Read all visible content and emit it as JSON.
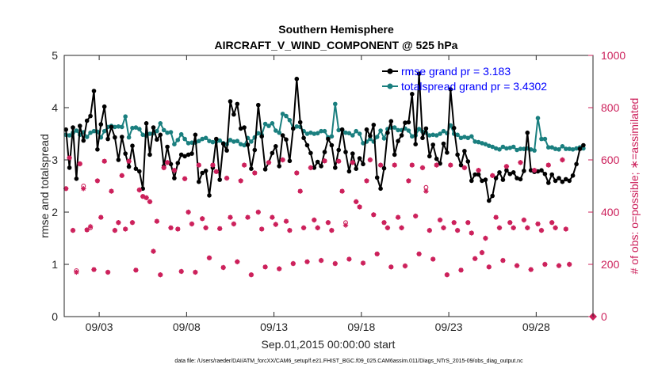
{
  "chart_data": {
    "type": "line",
    "title": "Southern Hemisphere",
    "subtitle": "AIRCRAFT_V_WIND_COMPONENT @ 525 hPa",
    "xlabel": "Sep.01,2015 00:00:00 start",
    "ylabel": "rmse and totalspread",
    "ylabel_right": "# of obs: o=possible; ∗=assimilated",
    "x_tick_labels": [
      "09/03",
      "09/08",
      "09/13",
      "09/18",
      "09/23",
      "09/28"
    ],
    "x_tick_days": [
      3,
      8,
      13,
      18,
      23,
      28
    ],
    "xlim_days": [
      1.0,
      31.25
    ],
    "ylim": [
      0,
      5
    ],
    "y_ticks": [
      0,
      1,
      2,
      3,
      4,
      5
    ],
    "ylim_right": [
      0,
      1000
    ],
    "y_ticks_right": [
      0,
      200,
      400,
      600,
      800,
      1000
    ],
    "footnote": "data file: /Users/raeder/DAI/ATM_forcXX/CAM6_setup/f.e21.FHIST_BGC.f09_025.CAM6assim.011/Diags_NTrS_2015-09/obs_diag_output.nc",
    "colors": {
      "rmse": "#000000",
      "spread": "#1a7f7f",
      "obs": "#cc1f5a",
      "legend_text": "#0000ff"
    },
    "series": [
      {
        "name": "rmse grand pr = 3.183",
        "values": [
          3.58,
          2.85,
          3.62,
          2.64,
          3.65,
          3.37,
          3.75,
          3.84,
          4.32,
          3.2,
          3.68,
          4.02,
          3.4,
          3.63,
          3.43,
          3.0,
          3.44,
          3.12,
          2.87,
          3.27,
          2.83,
          2.78,
          2.45,
          3.7,
          3.1,
          3.62,
          3.39,
          3.48,
          2.88,
          3.25,
          2.92,
          2.65,
          2.94,
          3.1,
          3.07,
          3.1,
          3.12,
          3.48,
          2.58,
          2.75,
          2.79,
          2.32,
          2.85,
          3.4,
          2.62,
          3.31,
          3.18,
          4.12,
          3.87,
          4.07,
          3.6,
          3.62,
          3.29,
          2.83,
          3.19,
          4.05,
          3.45,
          2.82,
          2.95,
          3.13,
          3.26,
          2.88,
          3.47,
          3.39,
          2.98,
          3.6,
          4.55,
          3.72,
          3.42,
          3.28,
          3.13,
          2.85,
          2.96,
          2.88,
          3.15,
          3.4,
          3.28,
          2.85,
          3.19,
          3.58,
          3.15,
          2.78,
          3.12,
          2.83,
          3.03,
          2.92,
          3.58,
          3.46,
          3.67,
          2.66,
          2.45,
          2.84,
          3.52,
          3.74,
          3.1,
          3.36,
          3.47,
          3.71,
          3.72,
          4.26,
          3.3,
          4.65,
          3.42,
          3.6,
          3.07,
          3.29,
          3.02,
          2.93,
          3.31,
          3.14,
          4.35,
          3.61,
          3.1,
          2.9,
          3.17,
          2.97,
          2.6,
          2.72,
          2.72,
          2.6,
          2.62,
          2.22,
          2.31,
          2.65,
          2.76,
          2.62,
          2.8,
          2.73,
          2.76,
          2.65,
          2.63,
          2.79,
          3.52,
          2.8,
          2.77,
          2.78,
          2.8,
          2.73,
          2.56,
          2.72,
          2.6,
          2.65,
          2.58,
          2.63,
          2.6,
          2.7,
          2.92,
          3.21,
          3.28
        ]
      },
      {
        "name": "totalspread grand pr = 3.4302",
        "values": [
          3.48,
          3.47,
          3.52,
          3.56,
          3.48,
          3.53,
          3.44,
          3.52,
          3.55,
          3.54,
          3.43,
          3.55,
          3.63,
          3.65,
          3.63,
          3.64,
          3.63,
          3.83,
          3.43,
          3.61,
          3.62,
          3.59,
          3.48,
          3.46,
          3.5,
          3.51,
          3.55,
          3.7,
          3.57,
          3.52,
          3.53,
          3.3,
          3.38,
          3.49,
          3.4,
          3.32,
          3.33,
          3.33,
          3.36,
          3.4,
          3.42,
          3.36,
          3.34,
          3.35,
          3.37,
          3.32,
          3.3,
          3.38,
          3.35,
          3.36,
          3.3,
          3.28,
          3.42,
          3.35,
          3.43,
          3.51,
          3.48,
          3.69,
          3.65,
          3.7,
          3.56,
          3.52,
          3.88,
          3.84,
          3.76,
          3.6,
          3.64,
          3.63,
          3.55,
          3.5,
          3.52,
          3.5,
          3.51,
          3.55,
          3.55,
          3.43,
          3.45,
          4.07,
          3.57,
          3.58,
          3.52,
          3.51,
          3.47,
          3.55,
          3.5,
          3.32,
          3.35,
          3.4,
          3.35,
          3.44,
          3.56,
          3.41,
          3.59,
          3.62,
          3.62,
          3.57,
          3.57,
          3.6,
          3.56,
          3.45,
          3.47,
          3.59,
          3.54,
          3.52,
          3.47,
          3.48,
          3.47,
          3.5,
          3.55,
          3.51,
          3.66,
          3.5,
          3.48,
          3.42,
          3.44,
          3.42,
          3.45,
          3.35,
          3.34,
          3.32,
          3.3,
          3.27,
          3.25,
          3.22,
          3.2,
          3.25,
          3.22,
          3.23,
          3.25,
          3.19,
          3.21,
          3.21,
          3.22,
          3.2,
          3.18,
          3.8,
          3.4,
          3.4,
          3.24,
          3.24,
          3.21,
          3.2,
          3.26,
          3.21,
          3.21,
          3.2,
          3.22,
          3.24,
          3.22
        ]
      },
      {
        "name": "possible",
        "values": [
          490,
          608,
          330,
          176,
          585,
          500,
          332,
          340,
          180,
          520,
          380,
          595,
          170,
          480,
          330,
          360,
          540,
          335,
          595,
          360,
          178,
          485,
          460,
          455,
          440,
          250,
          365,
          160,
          570,
          590,
          340,
          560,
          335,
          173,
          528,
          400,
          355,
          170,
          580,
          375,
          340,
          225,
          580,
          555,
          337,
          188,
          530,
          380,
          355,
          210,
          520,
          580,
          380,
          160,
          550,
          400,
          335,
          190,
          590,
          380,
          353,
          183,
          600,
          365,
          330,
          203,
          550,
          480,
          340,
          210,
          570,
          370,
          340,
          215,
          596,
          360,
          330,
          203,
          595,
          480,
          360,
          220,
          590,
          440,
          420,
          205,
          520,
          600,
          390,
          240,
          580,
          360,
          340,
          190,
          580,
          380,
          340,
          194,
          520,
          580,
          385,
          240,
          570,
          495,
          330,
          220,
          580,
          370,
          340,
          160,
          580,
          360,
          330,
          178,
          570,
          360,
          320,
          222,
          560,
          245,
          300,
          190,
          540,
          380,
          340,
          215,
          575,
          360,
          340,
          195,
          590,
          370,
          340,
          180,
          560,
          355,
          330,
          200,
          580,
          360,
          340,
          195,
          600,
          335,
          200
        ]
      },
      {
        "name": "assimilated",
        "values": [
          490,
          608,
          330,
          170,
          585,
          490,
          332,
          345,
          180,
          520,
          380,
          595,
          170,
          480,
          330,
          360,
          540,
          335,
          595,
          360,
          178,
          485,
          460,
          455,
          440,
          250,
          365,
          160,
          570,
          590,
          340,
          560,
          335,
          173,
          528,
          400,
          355,
          170,
          580,
          375,
          340,
          225,
          580,
          555,
          337,
          188,
          530,
          380,
          355,
          210,
          520,
          580,
          380,
          160,
          550,
          400,
          335,
          190,
          590,
          380,
          353,
          183,
          600,
          365,
          330,
          203,
          550,
          480,
          340,
          210,
          570,
          370,
          340,
          215,
          596,
          360,
          330,
          203,
          595,
          480,
          350,
          220,
          590,
          440,
          420,
          205,
          520,
          600,
          390,
          240,
          580,
          360,
          340,
          190,
          580,
          380,
          340,
          194,
          520,
          580,
          385,
          240,
          570,
          480,
          330,
          220,
          580,
          370,
          340,
          160,
          580,
          360,
          330,
          178,
          570,
          360,
          320,
          222,
          560,
          245,
          300,
          190,
          540,
          380,
          340,
          215,
          575,
          360,
          340,
          195,
          590,
          370,
          340,
          180,
          560,
          355,
          330,
          200,
          580,
          360,
          340,
          195,
          600,
          335,
          200
        ]
      }
    ]
  }
}
